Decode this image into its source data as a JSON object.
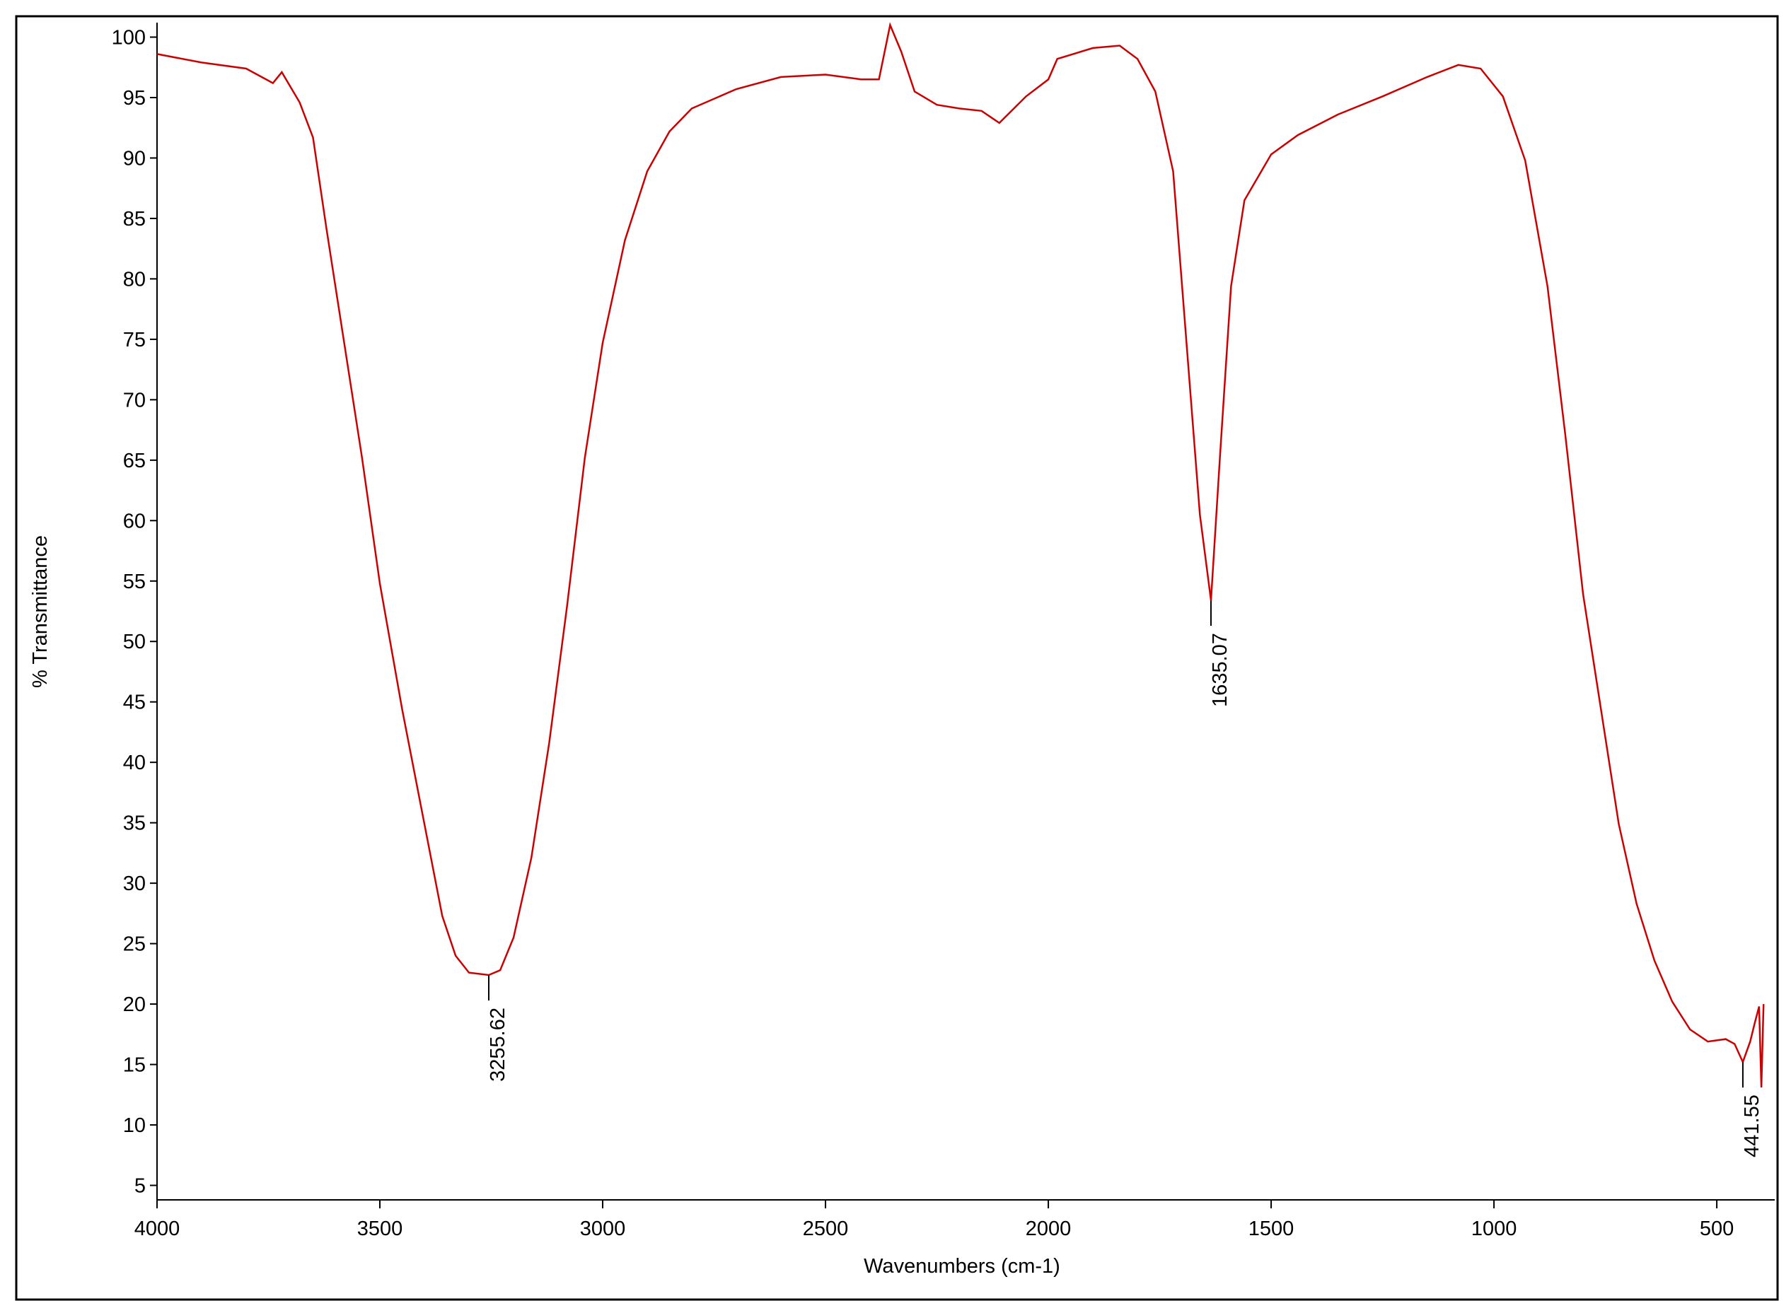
{
  "chart_data": {
    "type": "line",
    "x_label": "Wavenumbers (cm-1)",
    "y_label": "% Transmittance",
    "xlim": [
      4000,
      370
    ],
    "ylim": [
      3.8,
      101.2
    ],
    "xticks": [
      4000,
      3500,
      3000,
      2500,
      2000,
      1500,
      1000,
      500
    ],
    "yticks": [
      5,
      10,
      15,
      20,
      25,
      30,
      35,
      40,
      45,
      50,
      55,
      60,
      65,
      70,
      75,
      80,
      85,
      90,
      95,
      100
    ],
    "series": [
      {
        "color": "#cc0000",
        "x": [
          4000,
          3900,
          3800,
          3740,
          3720,
          3680,
          3650,
          3620,
          3580,
          3540,
          3500,
          3450,
          3400,
          3360,
          3330,
          3300,
          3255.62,
          3230,
          3200,
          3160,
          3120,
          3080,
          3040,
          3000,
          2950,
          2900,
          2850,
          2800,
          2700,
          2600,
          2500,
          2420,
          2380,
          2355,
          2330,
          2300,
          2250,
          2200,
          2150,
          2110,
          2050,
          2000,
          1980,
          1900,
          1840,
          1800,
          1760,
          1720,
          1690,
          1660,
          1635.07,
          1615,
          1590,
          1560,
          1500,
          1440,
          1350,
          1250,
          1150,
          1080,
          1030,
          980,
          930,
          880,
          840,
          800,
          760,
          720,
          680,
          640,
          600,
          560,
          520,
          480,
          460,
          441.55,
          425,
          415,
          405,
          400,
          395
        ],
        "values": [
          98.6,
          97.9,
          97.4,
          96.2,
          97.1,
          94.6,
          91.7,
          84.2,
          74.7,
          65.2,
          54.8,
          44.4,
          34.9,
          27.3,
          24,
          22.6,
          22.4,
          22.8,
          25.5,
          32.1,
          41.6,
          52.9,
          65.2,
          74.7,
          83.2,
          88.9,
          92.2,
          94.1,
          95.7,
          96.7,
          96.9,
          96.5,
          96.5,
          101,
          98.8,
          95.5,
          94.4,
          94.1,
          93.9,
          92.9,
          95.1,
          96.5,
          98.2,
          99.1,
          99.3,
          98.2,
          95.5,
          88.9,
          74.7,
          60.5,
          53.4,
          65.2,
          79.4,
          86.5,
          90.3,
          91.9,
          93.6,
          95.1,
          96.7,
          97.7,
          97.4,
          95.1,
          89.8,
          79.4,
          67.1,
          53.9,
          44.4,
          34.9,
          28.3,
          23.6,
          20.2,
          17.9,
          16.9,
          17.1,
          16.7,
          15.2,
          16.9,
          18.4,
          19.8,
          13.1,
          20
        ]
      }
    ],
    "annotations": [
      {
        "x": 3255.62,
        "y": 22.4
      },
      {
        "x": 1635.07,
        "y": 53.4
      },
      {
        "x": 441.55,
        "y": 15.2
      }
    ]
  }
}
